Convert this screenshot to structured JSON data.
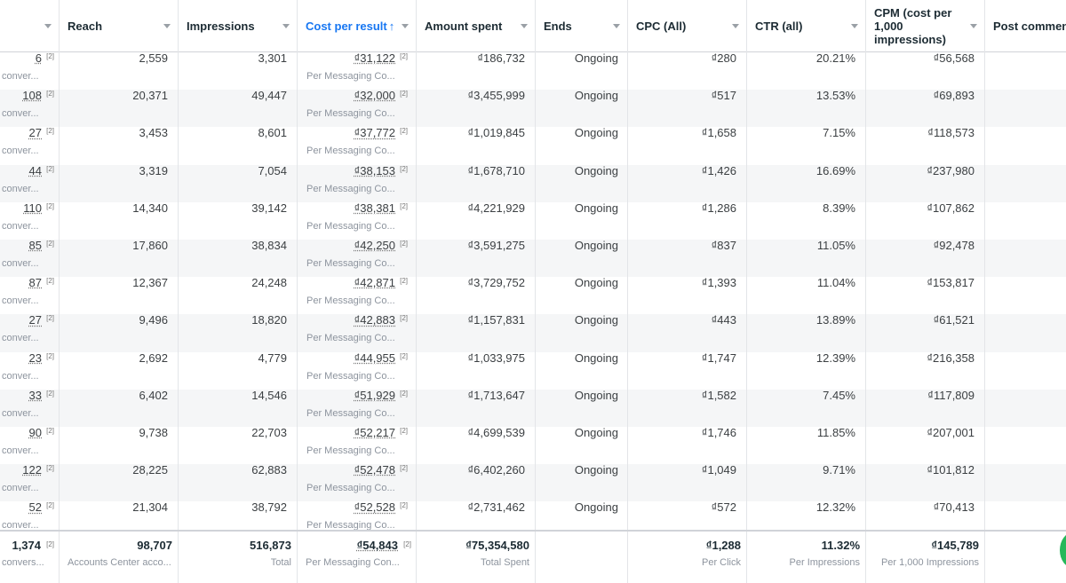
{
  "columns": {
    "results": {
      "label": ""
    },
    "reach": {
      "label": "Reach"
    },
    "impressions": {
      "label": "Impressions"
    },
    "cost_per_result": {
      "label": "Cost per result",
      "sort": "ascending"
    },
    "amount_spent": {
      "label": "Amount spent"
    },
    "ends": {
      "label": "Ends"
    },
    "cpc": {
      "label": "CPC (All)"
    },
    "ctr": {
      "label": "CTR (all)"
    },
    "cpm": {
      "label": "CPM (cost per 1,000 impressions)"
    },
    "post_comments": {
      "label": "Post comment"
    }
  },
  "rows": [
    {
      "results": "6",
      "results_tag": "[2]",
      "results_sub": "conver...",
      "reach": "2,559",
      "impressions": "3,301",
      "cpr": "₫31,122",
      "cpr_tag": "[2]",
      "cpr_sub": "Per Messaging Co...",
      "spent": "₫186,732",
      "ends": "Ongoing",
      "cpc": "₫280",
      "ctr": "20.21%",
      "cpm": "₫56,568"
    },
    {
      "results": "108",
      "results_tag": "[2]",
      "results_sub": "conver...",
      "reach": "20,371",
      "impressions": "49,447",
      "cpr": "₫32,000",
      "cpr_tag": "[2]",
      "cpr_sub": "Per Messaging Co...",
      "spent": "₫3,455,999",
      "ends": "Ongoing",
      "cpc": "₫517",
      "ctr": "13.53%",
      "cpm": "₫69,893"
    },
    {
      "results": "27",
      "results_tag": "[2]",
      "results_sub": "conver...",
      "reach": "3,453",
      "impressions": "8,601",
      "cpr": "₫37,772",
      "cpr_tag": "[2]",
      "cpr_sub": "Per Messaging Co...",
      "spent": "₫1,019,845",
      "ends": "Ongoing",
      "cpc": "₫1,658",
      "ctr": "7.15%",
      "cpm": "₫118,573"
    },
    {
      "results": "44",
      "results_tag": "[2]",
      "results_sub": "conver...",
      "reach": "3,319",
      "impressions": "7,054",
      "cpr": "₫38,153",
      "cpr_tag": "[2]",
      "cpr_sub": "Per Messaging Co...",
      "spent": "₫1,678,710",
      "ends": "Ongoing",
      "cpc": "₫1,426",
      "ctr": "16.69%",
      "cpm": "₫237,980"
    },
    {
      "results": "110",
      "results_tag": "[2]",
      "results_sub": "conver...",
      "reach": "14,340",
      "impressions": "39,142",
      "cpr": "₫38,381",
      "cpr_tag": "[2]",
      "cpr_sub": "Per Messaging Co...",
      "spent": "₫4,221,929",
      "ends": "Ongoing",
      "cpc": "₫1,286",
      "ctr": "8.39%",
      "cpm": "₫107,862"
    },
    {
      "results": "85",
      "results_tag": "[2]",
      "results_sub": "conver...",
      "reach": "17,860",
      "impressions": "38,834",
      "cpr": "₫42,250",
      "cpr_tag": "[2]",
      "cpr_sub": "Per Messaging Co...",
      "spent": "₫3,591,275",
      "ends": "Ongoing",
      "cpc": "₫837",
      "ctr": "11.05%",
      "cpm": "₫92,478"
    },
    {
      "results": "87",
      "results_tag": "[2]",
      "results_sub": "conver...",
      "reach": "12,367",
      "impressions": "24,248",
      "cpr": "₫42,871",
      "cpr_tag": "[2]",
      "cpr_sub": "Per Messaging Co...",
      "spent": "₫3,729,752",
      "ends": "Ongoing",
      "cpc": "₫1,393",
      "ctr": "11.04%",
      "cpm": "₫153,817"
    },
    {
      "results": "27",
      "results_tag": "[2]",
      "results_sub": "conver...",
      "reach": "9,496",
      "impressions": "18,820",
      "cpr": "₫42,883",
      "cpr_tag": "[2]",
      "cpr_sub": "Per Messaging Co...",
      "spent": "₫1,157,831",
      "ends": "Ongoing",
      "cpc": "₫443",
      "ctr": "13.89%",
      "cpm": "₫61,521"
    },
    {
      "results": "23",
      "results_tag": "[2]",
      "results_sub": "conver...",
      "reach": "2,692",
      "impressions": "4,779",
      "cpr": "₫44,955",
      "cpr_tag": "[2]",
      "cpr_sub": "Per Messaging Co...",
      "spent": "₫1,033,975",
      "ends": "Ongoing",
      "cpc": "₫1,747",
      "ctr": "12.39%",
      "cpm": "₫216,358"
    },
    {
      "results": "33",
      "results_tag": "[2]",
      "results_sub": "conver...",
      "reach": "6,402",
      "impressions": "14,546",
      "cpr": "₫51,929",
      "cpr_tag": "[2]",
      "cpr_sub": "Per Messaging Co...",
      "spent": "₫1,713,647",
      "ends": "Ongoing",
      "cpc": "₫1,582",
      "ctr": "7.45%",
      "cpm": "₫117,809"
    },
    {
      "results": "90",
      "results_tag": "[2]",
      "results_sub": "conver...",
      "reach": "9,738",
      "impressions": "22,703",
      "cpr": "₫52,217",
      "cpr_tag": "[2]",
      "cpr_sub": "Per Messaging Co...",
      "spent": "₫4,699,539",
      "ends": "Ongoing",
      "cpc": "₫1,746",
      "ctr": "11.85%",
      "cpm": "₫207,001"
    },
    {
      "results": "122",
      "results_tag": "[2]",
      "results_sub": "conver...",
      "reach": "28,225",
      "impressions": "62,883",
      "cpr": "₫52,478",
      "cpr_tag": "[2]",
      "cpr_sub": "Per Messaging Co...",
      "spent": "₫6,402,260",
      "ends": "Ongoing",
      "cpc": "₫1,049",
      "ctr": "9.71%",
      "cpm": "₫101,812"
    },
    {
      "results": "52",
      "results_tag": "[2]",
      "results_sub": "conver...",
      "reach": "21,304",
      "impressions": "38,792",
      "cpr": "₫52,528",
      "cpr_tag": "[2]",
      "cpr_sub": "Per Messaging Co...",
      "spent": "₫2,731,462",
      "ends": "Ongoing",
      "cpc": "₫572",
      "ctr": "12.32%",
      "cpm": "₫70,413"
    }
  ],
  "totals": {
    "results": "1,374",
    "results_tag": "[2]",
    "results_sub": "convers...",
    "reach": "98,707",
    "reach_sub": "Accounts Center acco...",
    "impressions": "516,873",
    "impressions_sub": "Total",
    "cpr": "₫54,843",
    "cpr_tag": "[2]",
    "cpr_sub": "Per Messaging Con...",
    "spent": "₫75,354,580",
    "spent_sub": "Total Spent",
    "cpc": "₫1,288",
    "cpc_sub": "Per Click",
    "ctr": "11.32%",
    "ctr_sub": "Per Impressions",
    "cpm": "₫145,789",
    "cpm_sub": "Per 1,000 Impressions"
  },
  "colors": {
    "accent": "#1877f2",
    "alt_row": "#f5f6f7",
    "floating_button": "#25b85a"
  }
}
